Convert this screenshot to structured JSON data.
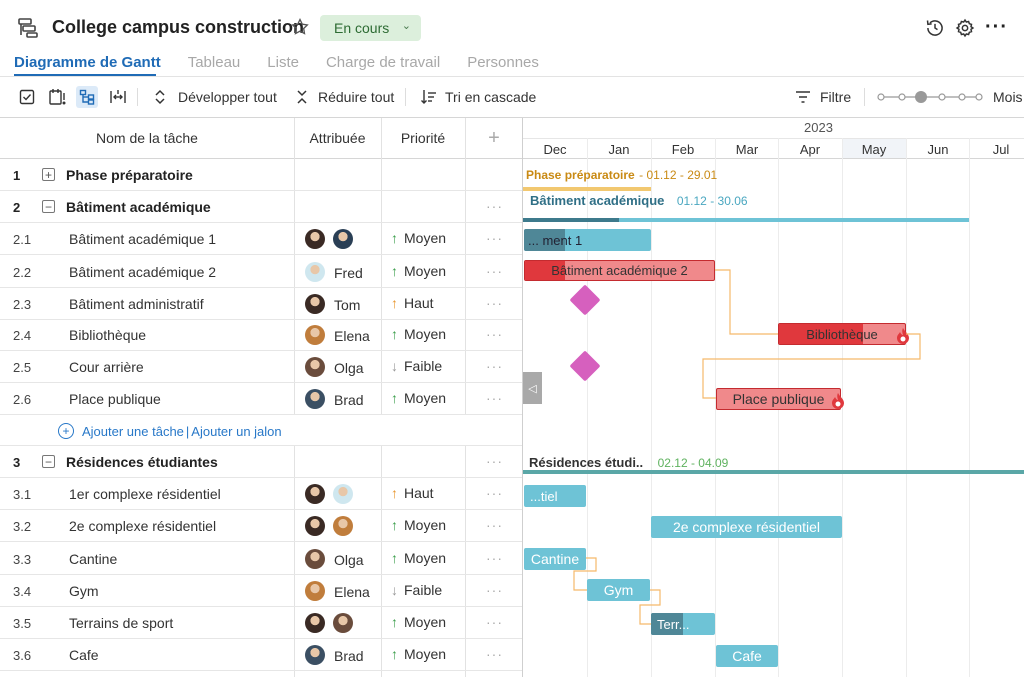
{
  "app": {
    "project_title": "College campus construction",
    "status": "En cours"
  },
  "tabs": [
    {
      "label": "Diagramme de Gantt",
      "active": true
    },
    {
      "label": "Tableau",
      "active": false
    },
    {
      "label": "Liste",
      "active": false
    },
    {
      "label": "Charge de travail",
      "active": false
    },
    {
      "label": "Personnes",
      "active": false
    }
  ],
  "toolbar": {
    "expand_all": "Développer tout",
    "collapse_all": "Réduire tout",
    "cascade_sort": "Tri en cascade",
    "filter": "Filtre",
    "zoom_label": "Mois"
  },
  "columns": {
    "task_name": "Nom de la tâche",
    "assigned": "Attribuée",
    "priority": "Priorité"
  },
  "rows": [
    {
      "num": "1",
      "name": "Phase préparatoire",
      "group": true,
      "expanded": false
    },
    {
      "num": "2",
      "name": "Bâtiment académique",
      "group": true,
      "expanded": true
    },
    {
      "num": "2.1",
      "name": "Bâtiment académique 1",
      "assignee": "",
      "priority": "Moyen"
    },
    {
      "num": "2.2",
      "name": "Bâtiment académique 2",
      "assignee": "Fred",
      "priority": "Moyen"
    },
    {
      "num": "2.3",
      "name": "Bâtiment administratif",
      "assignee": "Tom",
      "priority": "Haut"
    },
    {
      "num": "2.4",
      "name": "Bibliothèque",
      "assignee": "Elena",
      "priority": "Moyen"
    },
    {
      "num": "2.5",
      "name": "Cour arrière",
      "assignee": "Olga",
      "priority": "Faible"
    },
    {
      "num": "2.6",
      "name": "Place publique",
      "assignee": "Brad",
      "priority": "Moyen"
    },
    {
      "num": "3",
      "name": "Résidences étudiantes",
      "group": true,
      "expanded": true
    },
    {
      "num": "3.1",
      "name": "1er complexe résidentiel",
      "assignee": "",
      "priority": "Haut"
    },
    {
      "num": "3.2",
      "name": "2e complexe résidentiel",
      "assignee": "",
      "priority": "Moyen"
    },
    {
      "num": "3.3",
      "name": "Cantine",
      "assignee": "Olga",
      "priority": "Moyen"
    },
    {
      "num": "3.4",
      "name": "Gym",
      "assignee": "Elena",
      "priority": "Faible"
    },
    {
      "num": "3.5",
      "name": "Terrains de sport",
      "assignee": "",
      "priority": "Moyen"
    },
    {
      "num": "3.6",
      "name": "Cafe",
      "assignee": "Brad",
      "priority": "Moyen"
    }
  ],
  "add_links": {
    "add_task": "Ajouter une tâche",
    "add_milestone": "Ajouter un jalon"
  },
  "gantt": {
    "year": "2023",
    "months": [
      "Dec",
      "Jan",
      "Feb",
      "Mar",
      "Apr",
      "May",
      "Jun",
      "Jul"
    ],
    "phase1": {
      "label": "Phase préparatoire",
      "dates": "- 01.12 - 29.01"
    },
    "phase2": {
      "label": "Bâtiment académique",
      "dates": "01.12 - 30.06"
    },
    "phase3": {
      "label": "Résidences étudi..",
      "dates": "02.12 - 04.09"
    },
    "bars": {
      "b21": "... ment 1",
      "b22": "Bâtiment académique 2",
      "b24": "Bibliothèque",
      "b26": "Place publique",
      "b31": "...tiel",
      "b32": "2e complexe résidentiel",
      "b33": "Cantine",
      "b34": "Gym",
      "b35": "Terr...",
      "b36": "Cafe"
    }
  },
  "colors": {
    "accent": "#1f6bb6",
    "status_bg": "#dcefdc",
    "bar_teal": "#6ec3d6",
    "bar_teal_dark": "#4a8a9a",
    "bar_red": "#e0383d",
    "bar_red_light": "#f0898b",
    "milestone": "#d660be",
    "phase1_line": "#f2c870",
    "phase2_line": "#6ec3d6",
    "phase3_line": "#5aa7a7"
  }
}
